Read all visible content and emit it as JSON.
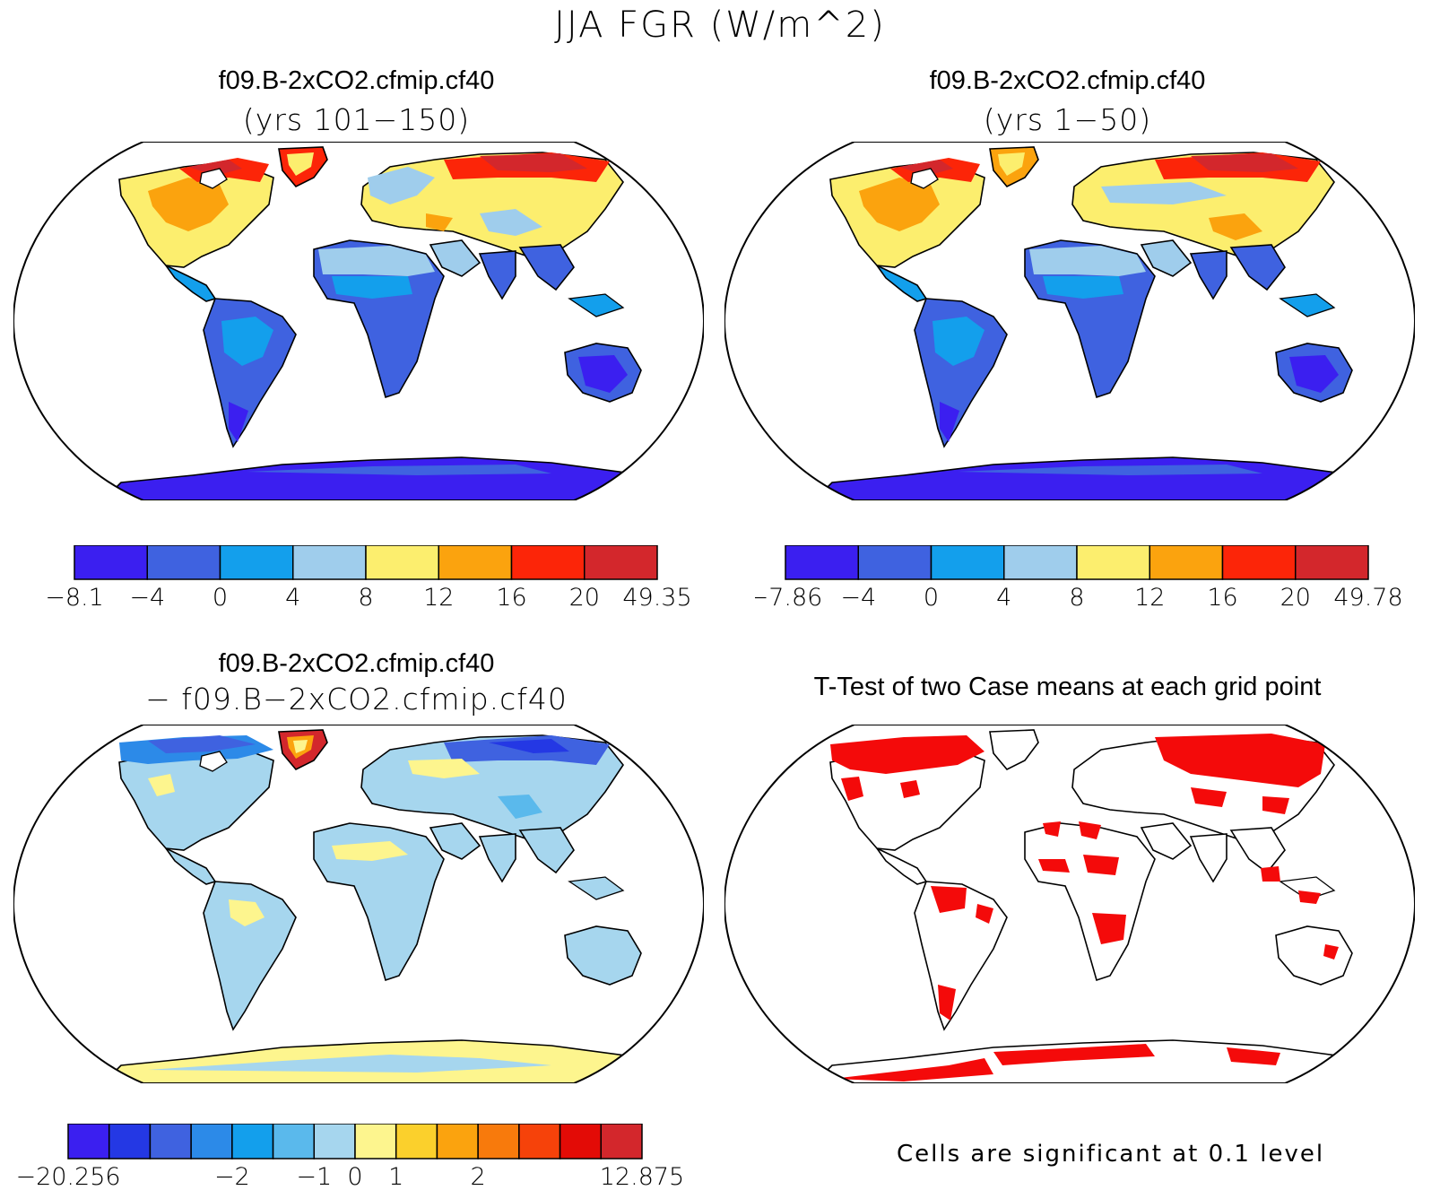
{
  "figure": {
    "title": "JJA FGR (W/m^2)"
  },
  "panels": [
    {
      "id": "top-left",
      "title": "f09.B-2xCO2.cfmip.cf40",
      "subtitle": "(yrs 101−150)",
      "colorbar": {
        "colors": [
          "#3b1ff0",
          "#3f62e0",
          "#139fec",
          "#9fcdec",
          "#fcee6e",
          "#fba30e",
          "#fc2508",
          "#d3272c"
        ],
        "labels": [
          "−8.1",
          "−4",
          "0",
          "4",
          "8",
          "12",
          "16",
          "20",
          "49.35"
        ]
      }
    },
    {
      "id": "top-right",
      "title": "f09.B-2xCO2.cfmip.cf40",
      "subtitle": "(yrs 1−50)",
      "colorbar": {
        "colors": [
          "#3b1ff0",
          "#3f62e0",
          "#139fec",
          "#9fcdec",
          "#fcee6e",
          "#fba30e",
          "#fc2508",
          "#d3272c"
        ],
        "labels": [
          "−7.86",
          "−4",
          "0",
          "4",
          "8",
          "12",
          "16",
          "20",
          "49.78"
        ]
      }
    },
    {
      "id": "bottom-left",
      "title": "f09.B-2xCO2.cfmip.cf40",
      "subtitle": "− f09.B−2xCO2.cfmip.cf40",
      "colorbar": {
        "colors": [
          "#3b1ff0",
          "#2438e4",
          "#3f62e0",
          "#2c8ae8",
          "#139fec",
          "#5ab9ec",
          "#a6d6ee",
          "#fdf58e",
          "#fbd02c",
          "#fba30e",
          "#f87a0c",
          "#f6420a",
          "#e30b06",
          "#d3272c"
        ],
        "labels": [
          "−20.256",
          "−2",
          "−1",
          "0",
          "1",
          "2",
          "12.875"
        ]
      }
    },
    {
      "id": "bottom-right",
      "title": "T-Test of two Case means at each grid point",
      "footnote": "Cells are significant at 0.1 level"
    }
  ]
}
